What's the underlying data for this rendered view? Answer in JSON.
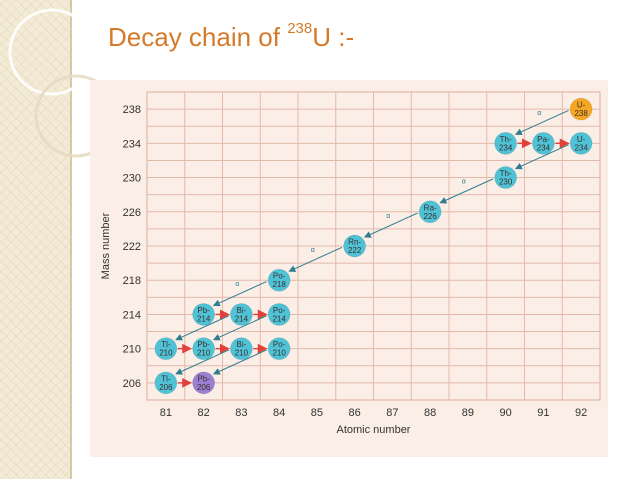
{
  "slide": {
    "title_prefix": "Decay chain of ",
    "title_superscript": "238",
    "title_suffix": "U :-"
  },
  "chart_data": {
    "type": "scatter",
    "xlabel": "Atomic number",
    "ylabel": "Mass number",
    "xticks": [
      81,
      82,
      83,
      84,
      85,
      86,
      87,
      88,
      89,
      90,
      91,
      92
    ],
    "yticks": [
      206,
      210,
      214,
      218,
      222,
      226,
      230,
      234,
      238
    ],
    "xlim": [
      80.5,
      92.5
    ],
    "ylim": [
      204,
      240
    ],
    "grid": true,
    "nuclides": [
      {
        "symbol": "U-",
        "mass": "238",
        "z": 92,
        "a": 238,
        "color": "#f5a623"
      },
      {
        "symbol": "Th-",
        "mass": "234",
        "z": 90,
        "a": 234,
        "color": "#4fc2d6"
      },
      {
        "symbol": "Pa-",
        "mass": "234",
        "z": 91,
        "a": 234,
        "color": "#4fc2d6"
      },
      {
        "symbol": "U-",
        "mass": "234",
        "z": 92,
        "a": 234,
        "color": "#4fc2d6"
      },
      {
        "symbol": "Th-",
        "mass": "230",
        "z": 90,
        "a": 230,
        "color": "#4fc2d6"
      },
      {
        "symbol": "Ra-",
        "mass": "226",
        "z": 88,
        "a": 226,
        "color": "#4fc2d6"
      },
      {
        "symbol": "Rn-",
        "mass": "222",
        "z": 86,
        "a": 222,
        "color": "#4fc2d6"
      },
      {
        "symbol": "Po-",
        "mass": "218",
        "z": 84,
        "a": 218,
        "color": "#4fc2d6"
      },
      {
        "symbol": "Pb-",
        "mass": "214",
        "z": 82,
        "a": 214,
        "color": "#4fc2d6"
      },
      {
        "symbol": "Bi-",
        "mass": "214",
        "z": 83,
        "a": 214,
        "color": "#4fc2d6"
      },
      {
        "symbol": "Po-",
        "mass": "214",
        "z": 84,
        "a": 214,
        "color": "#4fc2d6"
      },
      {
        "symbol": "Tl-",
        "mass": "210",
        "z": 81,
        "a": 210,
        "color": "#4fc2d6"
      },
      {
        "symbol": "Pb-",
        "mass": "210",
        "z": 82,
        "a": 210,
        "color": "#4fc2d6"
      },
      {
        "symbol": "Bi-",
        "mass": "210",
        "z": 83,
        "a": 210,
        "color": "#4fc2d6"
      },
      {
        "symbol": "Po-",
        "mass": "210",
        "z": 84,
        "a": 210,
        "color": "#4fc2d6"
      },
      {
        "symbol": "Tl-",
        "mass": "206",
        "z": 81,
        "a": 206,
        "color": "#4fc2d6"
      },
      {
        "symbol": "Pb-",
        "mass": "206",
        "z": 82,
        "a": 206,
        "color": "#9b7fd1"
      }
    ],
    "decays": [
      {
        "from": [
          92,
          238
        ],
        "to": [
          90,
          234
        ],
        "type": "alpha",
        "label": "α"
      },
      {
        "from": [
          90,
          234
        ],
        "to": [
          91,
          234
        ],
        "type": "beta"
      },
      {
        "from": [
          91,
          234
        ],
        "to": [
          92,
          234
        ],
        "type": "beta"
      },
      {
        "from": [
          92,
          234
        ],
        "to": [
          90,
          230
        ],
        "type": "alpha",
        "label": "α"
      },
      {
        "from": [
          90,
          230
        ],
        "to": [
          88,
          226
        ],
        "type": "alpha",
        "label": "α"
      },
      {
        "from": [
          88,
          226
        ],
        "to": [
          86,
          222
        ],
        "type": "alpha",
        "label": "α"
      },
      {
        "from": [
          86,
          222
        ],
        "to": [
          84,
          218
        ],
        "type": "alpha",
        "label": "α"
      },
      {
        "from": [
          84,
          218
        ],
        "to": [
          82,
          214
        ],
        "type": "alpha",
        "label": "α"
      },
      {
        "from": [
          82,
          214
        ],
        "to": [
          83,
          214
        ],
        "type": "beta"
      },
      {
        "from": [
          83,
          214
        ],
        "to": [
          84,
          214
        ],
        "type": "beta"
      },
      {
        "from": [
          84,
          214
        ],
        "to": [
          82,
          210
        ],
        "type": "alpha",
        "label": "α"
      },
      {
        "from": [
          83,
          214
        ],
        "to": [
          81,
          210
        ],
        "type": "alpha",
        "label": "α"
      },
      {
        "from": [
          81,
          210
        ],
        "to": [
          82,
          210
        ],
        "type": "beta"
      },
      {
        "from": [
          82,
          210
        ],
        "to": [
          83,
          210
        ],
        "type": "beta"
      },
      {
        "from": [
          83,
          210
        ],
        "to": [
          84,
          210
        ],
        "type": "beta"
      },
      {
        "from": [
          83,
          210
        ],
        "to": [
          81,
          206
        ],
        "type": "alpha",
        "label": "α"
      },
      {
        "from": [
          84,
          210
        ],
        "to": [
          82,
          206
        ],
        "type": "alpha",
        "label": "α"
      },
      {
        "from": [
          81,
          206
        ],
        "to": [
          82,
          206
        ],
        "type": "beta"
      }
    ],
    "colors": {
      "background": "#fbeee7",
      "grid": "#e3b9a8",
      "alpha_arrow": "#2f7d8f",
      "beta_arrow": "#e0413b",
      "node_text": "#3a2f2f",
      "title": "#d57a2a"
    }
  }
}
